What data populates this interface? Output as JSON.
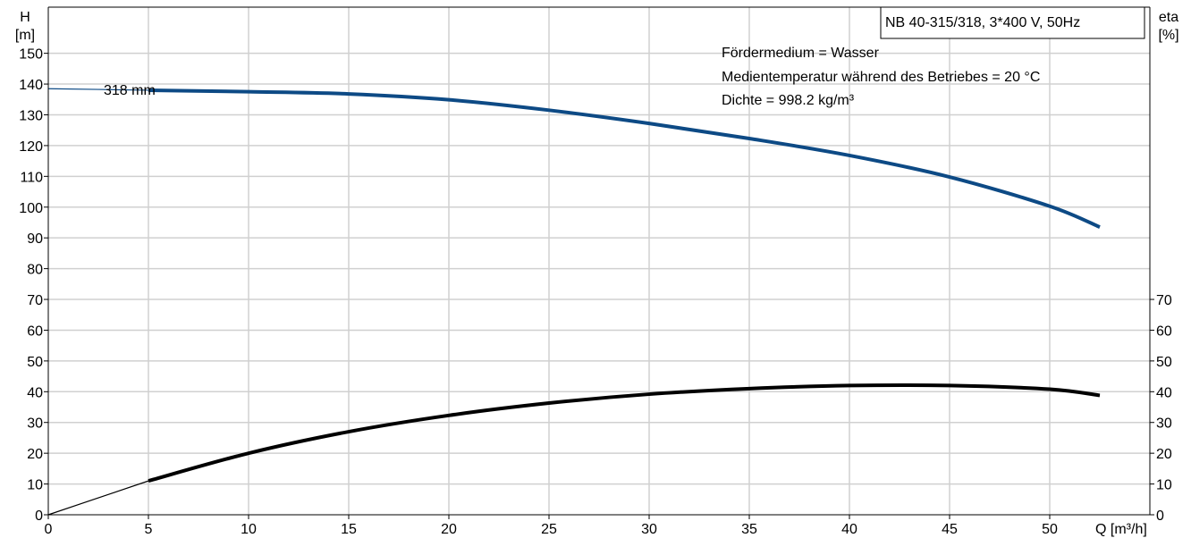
{
  "chart_data": {
    "type": "line",
    "title": "NB 40-315/318, 3*400 V, 50Hz",
    "annotations": [
      "Fördermedium = Wasser",
      "Medientemperatur während des Betriebes = 20 °C",
      "Dichte = 998.2 kg/m³"
    ],
    "curve_label": "318 mm",
    "x_axis": {
      "label": "Q [m³/h]",
      "range": [
        0,
        55
      ],
      "ticks": [
        0,
        5,
        10,
        15,
        20,
        25,
        30,
        35,
        40,
        45,
        50
      ]
    },
    "y_axis_left": {
      "label_top": "H",
      "label_unit": "[m]",
      "range": [
        0,
        165
      ],
      "ticks": [
        0,
        10,
        20,
        30,
        40,
        50,
        60,
        70,
        80,
        90,
        100,
        110,
        120,
        130,
        140,
        150
      ]
    },
    "y_axis_right": {
      "label_top": "eta",
      "label_unit": "[%]",
      "range": [
        0,
        165
      ],
      "ticks": [
        0,
        10,
        20,
        30,
        40,
        50,
        60,
        70
      ]
    },
    "grid": true,
    "series": [
      {
        "axis": "left",
        "color": "#0d4a85",
        "thin_segment": [
          [
            0,
            138.5
          ],
          [
            5,
            138
          ]
        ],
        "points": [
          [
            5,
            138
          ],
          [
            10,
            137.5
          ],
          [
            15,
            136.8
          ],
          [
            20,
            134.9
          ],
          [
            25,
            131.5
          ],
          [
            30,
            127.2
          ],
          [
            35,
            122.3
          ],
          [
            40,
            116.8
          ],
          [
            45,
            109.8
          ],
          [
            50,
            100.3
          ],
          [
            52.5,
            93.5
          ]
        ]
      },
      {
        "axis": "right",
        "color": "#000000",
        "thin_segment": [
          [
            0,
            0
          ],
          [
            2.5,
            5.5
          ],
          [
            5,
            11
          ]
        ],
        "points": [
          [
            5,
            11
          ],
          [
            10,
            20
          ],
          [
            15,
            27
          ],
          [
            20,
            32.3
          ],
          [
            25,
            36.3
          ],
          [
            30,
            39.2
          ],
          [
            35,
            41
          ],
          [
            40,
            42
          ],
          [
            45,
            42
          ],
          [
            50,
            40.8
          ],
          [
            52.5,
            38.8
          ]
        ]
      }
    ]
  }
}
